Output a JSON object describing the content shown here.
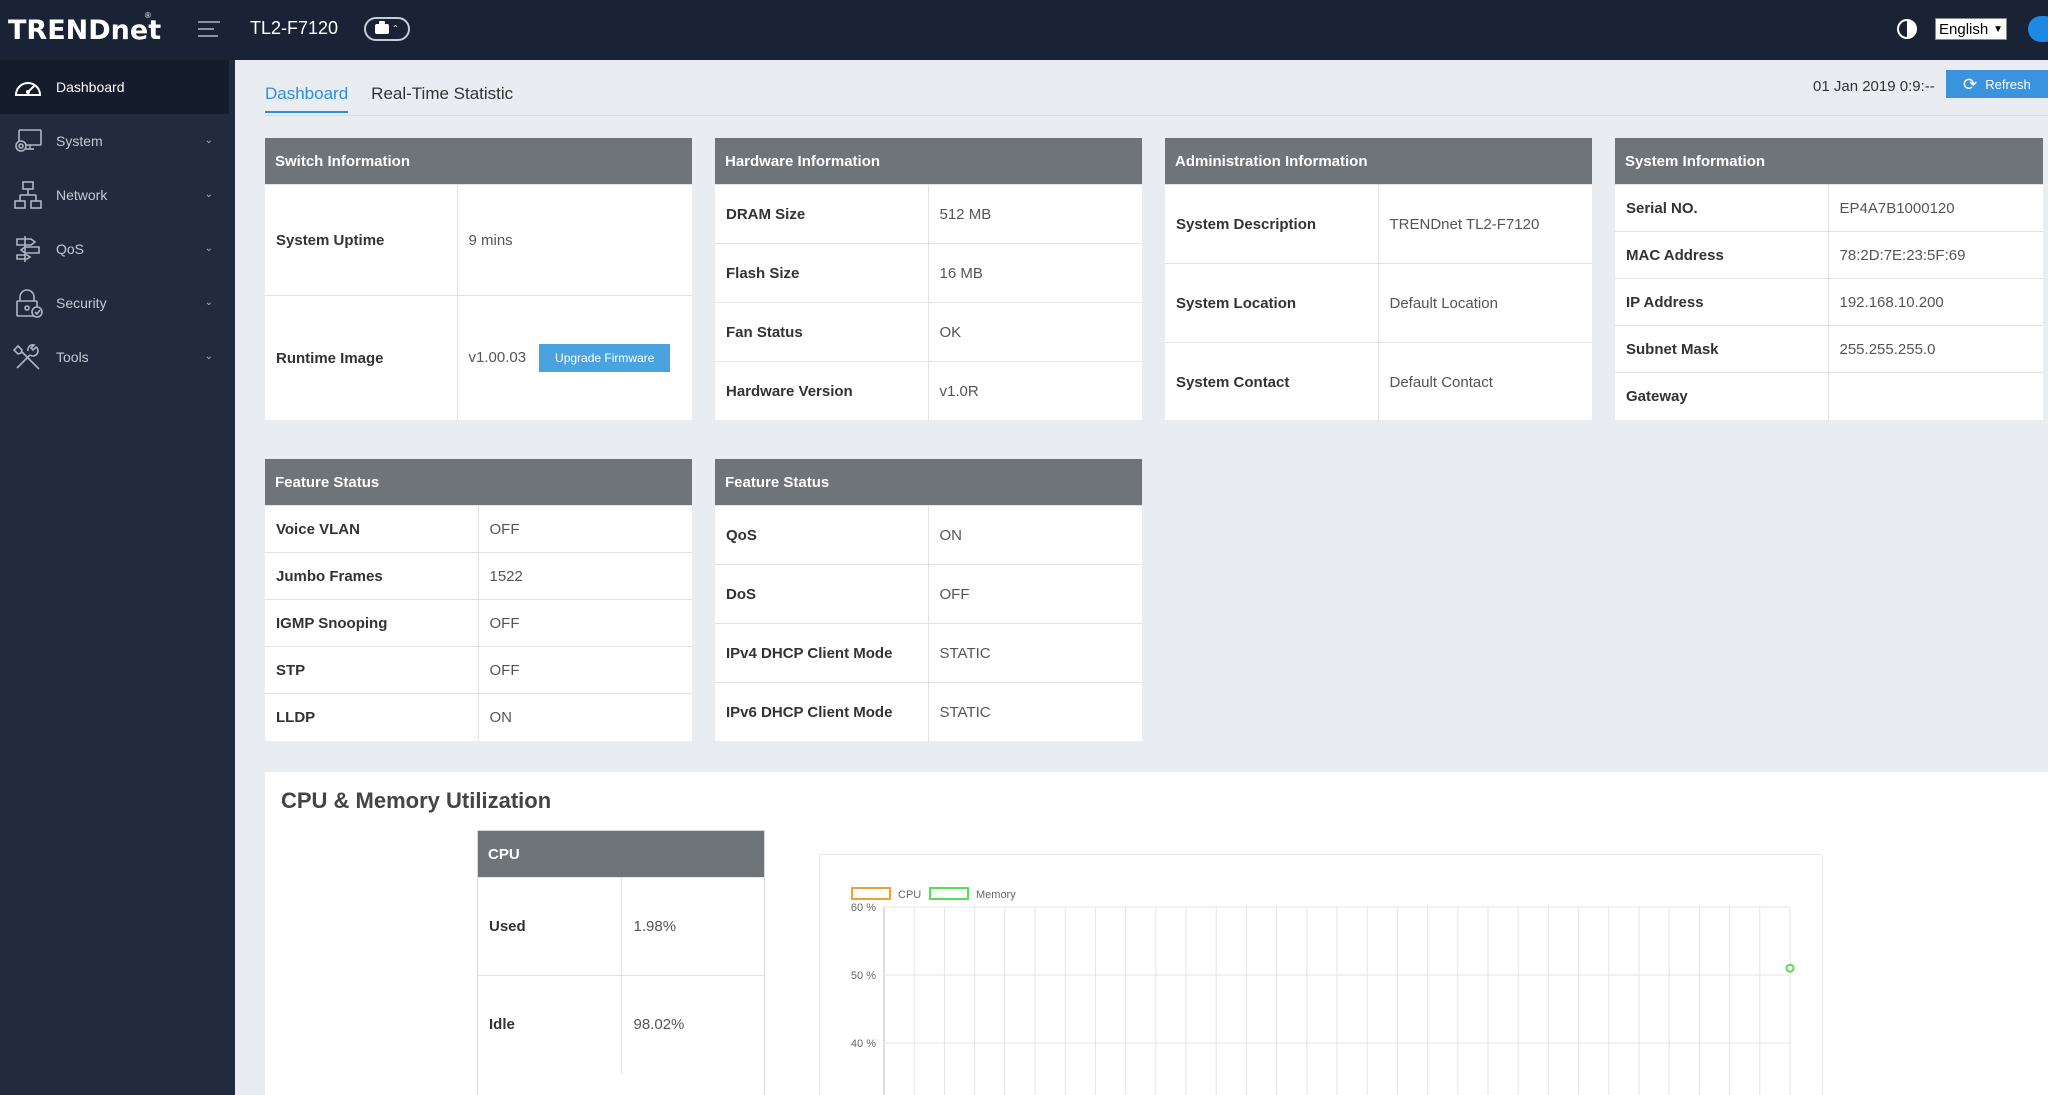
{
  "header": {
    "brand": "TRENDnet",
    "brand_mark": "®",
    "model": "TL2-F7120",
    "language": "English",
    "accent_color": "#1e88e5"
  },
  "sidebar": {
    "items": [
      {
        "label": "Dashboard",
        "icon": "dashboard-icon",
        "active": true
      },
      {
        "label": "System",
        "icon": "system-icon"
      },
      {
        "label": "Network",
        "icon": "network-icon"
      },
      {
        "label": "QoS",
        "icon": "qos-icon"
      },
      {
        "label": "Security",
        "icon": "security-icon"
      },
      {
        "label": "Tools",
        "icon": "tools-icon"
      }
    ]
  },
  "tabs": [
    "Dashboard",
    "Real-Time Statistic"
  ],
  "datetime": "01 Jan 2019 0:9:--",
  "refresh_label": "Refresh",
  "switch_info": {
    "title": "Switch Information",
    "rows": [
      {
        "label": "System Uptime",
        "value": "9 mins"
      },
      {
        "label": "Runtime Image",
        "value": "v1.00.03"
      }
    ],
    "upgrade_label": "Upgrade Firmware"
  },
  "hardware_info": {
    "title": "Hardware Information",
    "rows": [
      {
        "label": "DRAM Size",
        "value": "512 MB"
      },
      {
        "label": "Flash Size",
        "value": "16 MB"
      },
      {
        "label": "Fan Status",
        "value": "OK"
      },
      {
        "label": "Hardware Version",
        "value": "v1.0R"
      }
    ]
  },
  "admin_info": {
    "title": "Administration Information",
    "rows": [
      {
        "label": "System Description",
        "value": "TRENDnet TL2-F7120"
      },
      {
        "label": "System Location",
        "value": "Default Location"
      },
      {
        "label": "System Contact",
        "value": "Default Contact"
      }
    ]
  },
  "system_info": {
    "title": "System Information",
    "rows": [
      {
        "label": "Serial NO.",
        "value": "EP4A7B1000120"
      },
      {
        "label": "MAC Address",
        "value": "78:2D:7E:23:5F:69"
      },
      {
        "label": "IP Address",
        "value": "192.168.10.200"
      },
      {
        "label": "Subnet Mask",
        "value": "255.255.255.0"
      },
      {
        "label": "Gateway",
        "value": ""
      }
    ]
  },
  "feature_status_1": {
    "title": "Feature Status",
    "rows": [
      {
        "label": "Voice VLAN",
        "value": "OFF"
      },
      {
        "label": "Jumbo Frames",
        "value": "1522"
      },
      {
        "label": "IGMP Snooping",
        "value": "OFF"
      },
      {
        "label": "STP",
        "value": "OFF"
      },
      {
        "label": "LLDP",
        "value": "ON"
      }
    ]
  },
  "feature_status_2": {
    "title": "Feature Status",
    "rows": [
      {
        "label": "QoS",
        "value": "ON"
      },
      {
        "label": "DoS",
        "value": "OFF"
      },
      {
        "label": "IPv4 DHCP Client Mode",
        "value": "STATIC"
      },
      {
        "label": "IPv6 DHCP Client Mode",
        "value": "STATIC"
      }
    ]
  },
  "utilization": {
    "title": "CPU & Memory Utilization",
    "cpu": {
      "title": "CPU",
      "rows": [
        {
          "label": "Used",
          "value": "1.98%"
        },
        {
          "label": "Idle",
          "value": "98.02%"
        }
      ]
    }
  },
  "chart_data": {
    "type": "line",
    "series": [
      {
        "name": "CPU",
        "color": "#f0a030",
        "values": []
      },
      {
        "name": "Memory",
        "color": "#55dd55",
        "values": [
          {
            "x": 30,
            "y": 51.0
          }
        ]
      }
    ],
    "x_count": 31,
    "yticks": [
      "60 %",
      "50 %",
      "40 %"
    ],
    "ytick_values": [
      60,
      50,
      40
    ],
    "ylim": [
      40,
      60
    ],
    "grid": true,
    "legend": "top-left"
  }
}
